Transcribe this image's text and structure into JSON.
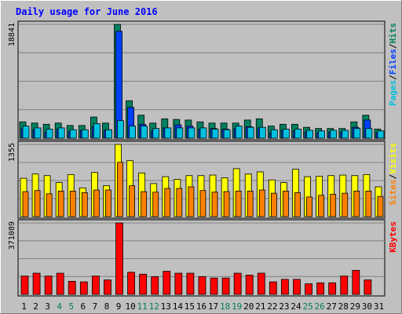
{
  "chart_data": {
    "title": "Daily usage for June 2016",
    "type": "bar",
    "categories": [
      "1",
      "2",
      "3",
      "4",
      "5",
      "6",
      "7",
      "8",
      "9",
      "10",
      "11",
      "12",
      "13",
      "14",
      "15",
      "16",
      "17",
      "18",
      "19",
      "20",
      "21",
      "22",
      "23",
      "24",
      "25",
      "26",
      "27",
      "28",
      "29",
      "30",
      "31"
    ],
    "weekend_days": [
      "4",
      "5",
      "11",
      "12",
      "18",
      "19",
      "25",
      "26"
    ],
    "panels": [
      {
        "name": "hits-files-pages",
        "ymax": 18841,
        "ymax_label": "18841",
        "legend": [
          {
            "label": "Pages",
            "color": "#00c0e0"
          },
          {
            "label": "/",
            "color": "#000000"
          },
          {
            "label": "Files",
            "color": "#0040ff"
          },
          {
            "label": "/",
            "color": "#000000"
          },
          {
            "label": "Hits",
            "color": "#008060"
          }
        ],
        "series": [
          {
            "name": "Hits",
            "color": "#008060",
            "values": [
              2700,
              2500,
              2300,
              2500,
              2100,
              2100,
              3500,
              2500,
              18841,
              6200,
              3800,
              2500,
              3200,
              3100,
              3000,
              2700,
              2500,
              2500,
              2500,
              3000,
              3200,
              2000,
              2300,
              2300,
              1800,
              1600,
              1600,
              1600,
              2700,
              3800,
              1500
            ]
          },
          {
            "name": "Files",
            "color": "#0040ff",
            "values": [
              1600,
              1400,
              1000,
              1500,
              1100,
              1300,
              1900,
              1300,
              17700,
              5100,
              2300,
              1200,
              1700,
              2200,
              2000,
              1500,
              1600,
              1500,
              1600,
              1900,
              1700,
              900,
              1300,
              1200,
              1000,
              900,
              1000,
              1000,
              1800,
              3000,
              900
            ]
          },
          {
            "name": "Pages",
            "color": "#00c0e0",
            "values": [
              2000,
              1700,
              1500,
              1700,
              1400,
              1400,
              2400,
              1400,
              2900,
              2000,
              2000,
              1600,
              1700,
              1700,
              1700,
              1700,
              1500,
              1400,
              2000,
              1800,
              1800,
              1400,
              1500,
              1500,
              1300,
              1200,
              1300,
              1300,
              1600,
              1600,
              1200
            ]
          }
        ]
      },
      {
        "name": "visits-sites",
        "ymax": 1355,
        "ymax_label": "1355",
        "legend": [
          {
            "label": "Sites",
            "color": "#ff8000"
          },
          {
            "label": "/",
            "color": "#000000"
          },
          {
            "label": "Visits",
            "color": "#ffff00"
          }
        ],
        "series": [
          {
            "name": "Visits",
            "color": "#ffff00",
            "values": [
              720,
              800,
              770,
              640,
              790,
              540,
              830,
              580,
              1355,
              1050,
              820,
              620,
              750,
              700,
              770,
              770,
              780,
              730,
              900,
              800,
              840,
              690,
              640,
              890,
              750,
              760,
              770,
              780,
              770,
              790,
              560
            ]
          },
          {
            "name": "Sites",
            "color": "#ff8000",
            "values": [
              470,
              490,
              430,
              480,
              480,
              450,
              500,
              500,
              1020,
              580,
              470,
              460,
              530,
              530,
              560,
              490,
              460,
              470,
              480,
              480,
              500,
              440,
              480,
              450,
              370,
              400,
              420,
              440,
              480,
              480,
              380
            ]
          }
        ]
      },
      {
        "name": "kbytes",
        "ymax": 371089,
        "ymax_label": "371089",
        "legend": [
          {
            "label": "KBytes",
            "color": "#ff0000"
          }
        ],
        "series": [
          {
            "name": "KBytes",
            "color": "#ff0000",
            "values": [
              95000,
              110000,
              95000,
              110000,
              68000,
              65000,
              95000,
              75000,
              371089,
              115000,
              105000,
              92000,
              120000,
              110000,
              110000,
              92000,
              85000,
              85000,
              110000,
              100000,
              110000,
              65000,
              78000,
              78000,
              55000,
              60000,
              60000,
              95000,
              125000,
              75000,
              0
            ]
          }
        ]
      }
    ]
  },
  "colors": {
    "background": "#c0c0c0",
    "plot_background": "#c0c0c0",
    "gridline": "#808080",
    "title": "#0000ff",
    "weekend_label": "#007f4f",
    "weekday_label": "#000000"
  }
}
